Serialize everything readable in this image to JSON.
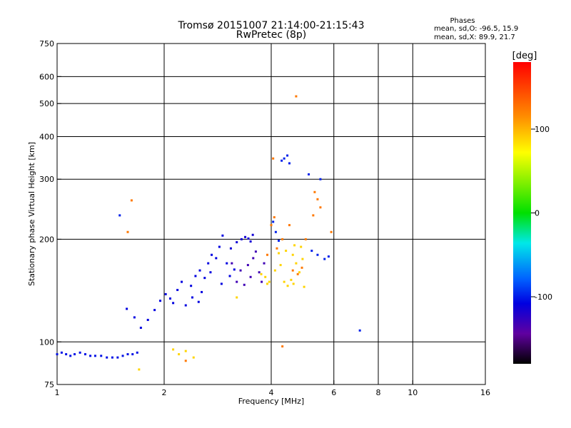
{
  "chart_data": {
    "type": "scatter",
    "title": "Tromsø 20151007 21:14:00-21:15:43",
    "subtitle": "RwPretec (8p)",
    "xlabel": "Frequency [MHz]",
    "ylabel": "Stationary phase Virtual Height [km]",
    "x_scale": "log",
    "y_scale": "log",
    "xlim": [
      1,
      16
    ],
    "ylim": [
      75,
      750
    ],
    "x_ticks": [
      1,
      2,
      4,
      6,
      8,
      10,
      16
    ],
    "x_tick_labels": [
      "1",
      "2",
      "4",
      "6",
      "8",
      "10",
      "16"
    ],
    "x_grid": [
      2,
      4,
      6,
      8,
      10
    ],
    "y_ticks": [
      75,
      100,
      200,
      300,
      400,
      500,
      600,
      750
    ],
    "y_tick_labels": [
      "75",
      "100",
      "200",
      "300",
      "400",
      "500",
      "600",
      "750"
    ],
    "y_grid": [
      100,
      200,
      300,
      400,
      500,
      600
    ],
    "grid": true,
    "stats": {
      "heading": "Phases",
      "line_o": "mean, sd,O: -96.5, 15.9",
      "line_x": "mean, sd,X:  89.9, 21.7"
    },
    "colorbar": {
      "label": "[deg]",
      "range": [
        -180,
        180
      ],
      "ticks": [
        100,
        0,
        -100
      ],
      "tick_labels": [
        "100",
        "0",
        "-100"
      ]
    },
    "series": [
      {
        "phase": -105,
        "points": [
          [
            1.0,
            92
          ],
          [
            1.03,
            93
          ],
          [
            1.06,
            92
          ],
          [
            1.09,
            91
          ],
          [
            1.12,
            92
          ],
          [
            1.16,
            93
          ],
          [
            1.2,
            92
          ],
          [
            1.24,
            91
          ],
          [
            1.28,
            91
          ],
          [
            1.33,
            91
          ],
          [
            1.38,
            90
          ],
          [
            1.43,
            90
          ],
          [
            1.48,
            90
          ],
          [
            1.53,
            91
          ],
          [
            1.58,
            92
          ],
          [
            1.63,
            92
          ],
          [
            1.68,
            93
          ]
        ]
      },
      {
        "phase": -110,
        "points": [
          [
            1.57,
            125
          ],
          [
            1.65,
            118
          ],
          [
            1.72,
            110
          ],
          [
            1.8,
            116
          ],
          [
            1.88,
            124
          ],
          [
            1.95,
            132
          ],
          [
            2.02,
            138
          ],
          [
            2.08,
            134
          ],
          [
            2.12,
            130
          ],
          [
            2.18,
            142
          ],
          [
            2.24,
            150
          ],
          [
            2.3,
            128
          ],
          [
            2.38,
            146
          ],
          [
            2.45,
            156
          ],
          [
            2.52,
            162
          ],
          [
            2.6,
            154
          ],
          [
            2.66,
            170
          ],
          [
            2.72,
            180
          ],
          [
            2.8,
            176
          ],
          [
            2.86,
            190
          ],
          [
            2.92,
            205
          ],
          [
            3.0,
            170
          ],
          [
            3.06,
            156
          ],
          [
            3.15,
            163
          ],
          [
            2.55,
            140
          ],
          [
            2.4,
            135
          ],
          [
            2.9,
            148
          ],
          [
            2.7,
            160
          ],
          [
            2.5,
            131
          ]
        ]
      },
      {
        "phase": -115,
        "points": [
          [
            3.3,
            200
          ],
          [
            3.38,
            203
          ],
          [
            3.45,
            201
          ],
          [
            3.5,
            197
          ],
          [
            3.08,
            188
          ],
          [
            3.2,
            196
          ],
          [
            3.55,
            206
          ]
        ]
      },
      {
        "phase": -130,
        "points": [
          [
            3.1,
            170
          ],
          [
            3.2,
            150
          ],
          [
            3.28,
            162
          ],
          [
            3.36,
            147
          ],
          [
            3.44,
            168
          ],
          [
            3.5,
            155
          ],
          [
            3.56,
            176
          ],
          [
            3.62,
            184
          ],
          [
            3.7,
            160
          ],
          [
            3.76,
            150
          ],
          [
            3.82,
            170
          ]
        ]
      },
      {
        "phase": -100,
        "points": [
          [
            4.05,
            225
          ],
          [
            4.12,
            210
          ],
          [
            4.2,
            198
          ],
          [
            4.28,
            340
          ],
          [
            4.35,
            345
          ],
          [
            4.44,
            352
          ],
          [
            4.5,
            334
          ],
          [
            5.1,
            310
          ],
          [
            5.5,
            300
          ],
          [
            5.2,
            185
          ],
          [
            5.4,
            180
          ],
          [
            5.65,
            175
          ],
          [
            5.8,
            178
          ],
          [
            1.5,
            235
          ],
          [
            7.1,
            108
          ]
        ]
      },
      {
        "phase": 85,
        "points": [
          [
            3.75,
            158
          ],
          [
            3.85,
            155
          ],
          [
            3.95,
            150
          ],
          [
            4.1,
            162
          ],
          [
            4.25,
            168
          ],
          [
            4.35,
            150
          ],
          [
            4.45,
            146
          ],
          [
            4.55,
            152
          ],
          [
            4.62,
            148
          ],
          [
            4.7,
            170
          ],
          [
            4.8,
            160
          ],
          [
            4.9,
            175
          ],
          [
            4.4,
            185
          ],
          [
            4.2,
            182
          ],
          [
            4.85,
            190
          ],
          [
            4.6,
            180
          ],
          [
            3.9,
            148
          ],
          [
            4.65,
            192
          ],
          [
            2.12,
            95
          ],
          [
            2.2,
            92
          ],
          [
            2.3,
            94
          ],
          [
            2.42,
            90
          ],
          [
            1.7,
            83
          ],
          [
            3.2,
            135
          ],
          [
            4.95,
            145
          ]
        ]
      },
      {
        "phase": 120,
        "points": [
          [
            3.9,
            180
          ],
          [
            4.0,
            220
          ],
          [
            4.08,
            232
          ],
          [
            4.15,
            188
          ],
          [
            4.3,
            200
          ],
          [
            4.5,
            220
          ],
          [
            4.75,
            158
          ],
          [
            4.88,
            165
          ],
          [
            4.6,
            162
          ],
          [
            5.3,
            275
          ],
          [
            5.4,
            262
          ],
          [
            5.5,
            248
          ],
          [
            5.25,
            235
          ],
          [
            5.0,
            200
          ],
          [
            4.7,
            525
          ],
          [
            5.9,
            210
          ],
          [
            4.05,
            345
          ],
          [
            1.62,
            260
          ],
          [
            1.58,
            210
          ],
          [
            2.3,
            88
          ],
          [
            4.3,
            97
          ]
        ]
      }
    ]
  }
}
